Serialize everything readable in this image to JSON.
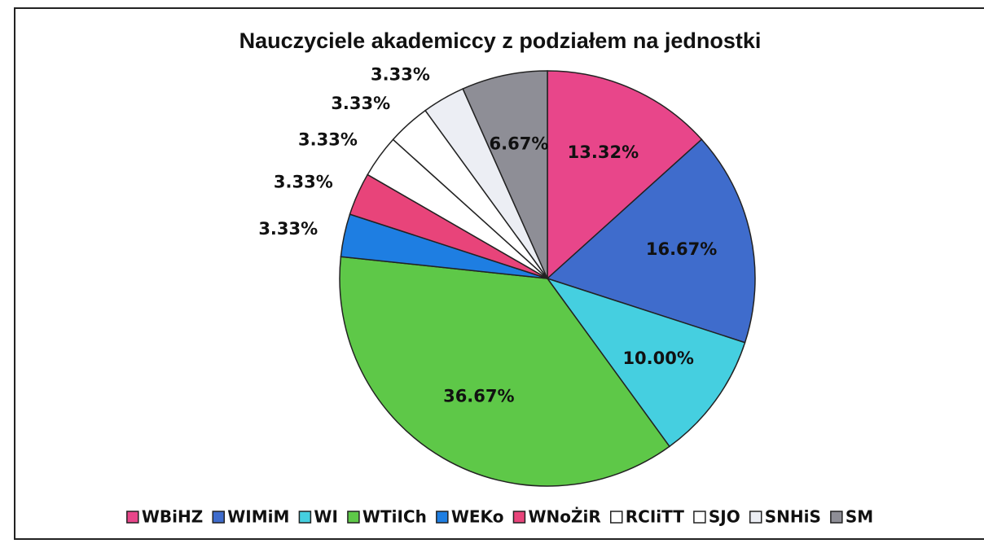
{
  "chart_data": {
    "type": "pie",
    "title": "Nauczyciele akademiccy z podziałem na jednostki",
    "categories": [
      "WBiHZ",
      "WIMiM",
      "WI",
      "WTiICh",
      "WEKo",
      "WNoŻiR",
      "RCIiTT",
      "SJO",
      "SNHiS",
      "SM"
    ],
    "values": [
      13.32,
      16.67,
      10.0,
      36.67,
      3.33,
      3.33,
      3.33,
      3.33,
      3.33,
      6.67
    ],
    "value_labels": [
      "13.32%",
      "16.67%",
      "10.00%",
      "36.67%",
      "3.33%",
      "3.33%",
      "3.33%",
      "3.33%",
      "3.33%",
      "6.67%"
    ],
    "colors": [
      "#e8468a",
      "#3f6ccc",
      "#45cfe0",
      "#5ec848",
      "#1e7ee2",
      "#e8447a",
      "#ffffff",
      "#ffffff",
      "#eceef4",
      "#8e8e96"
    ],
    "legend": "bottom"
  }
}
